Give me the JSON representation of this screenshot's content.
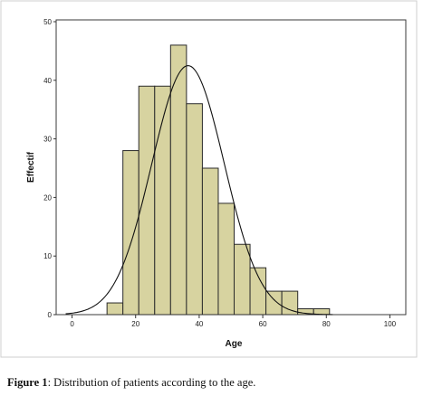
{
  "caption": {
    "label": "Figure 1",
    "text": ": Distribution of patients according to the age."
  },
  "chart_data": {
    "type": "bar",
    "subtype": "histogram",
    "xlabel": "Age",
    "ylabel": "Effectif",
    "xlim": [
      -5,
      105
    ],
    "ylim": [
      0,
      50
    ],
    "x_ticks": [
      0,
      20,
      40,
      60,
      80,
      100
    ],
    "y_ticks": [
      0,
      10,
      20,
      30,
      40,
      50
    ],
    "bin_width": 5,
    "bins": [
      {
        "start": 11,
        "count": 2
      },
      {
        "start": 16,
        "count": 28
      },
      {
        "start": 21,
        "count": 39
      },
      {
        "start": 26,
        "count": 39
      },
      {
        "start": 31,
        "count": 46
      },
      {
        "start": 36,
        "count": 36
      },
      {
        "start": 41,
        "count": 25
      },
      {
        "start": 46,
        "count": 19
      },
      {
        "start": 51,
        "count": 12
      },
      {
        "start": 56,
        "count": 8
      },
      {
        "start": 61,
        "count": 4
      },
      {
        "start": 66,
        "count": 4
      },
      {
        "start": 71,
        "count": 1
      },
      {
        "start": 76,
        "count": 1
      }
    ],
    "normal_curve": {
      "mean": 36.5,
      "sd": 11.4,
      "peak": 42.5
    },
    "grid": false,
    "colors": {
      "bar_fill": "#d7d3a0",
      "bar_stroke": "#2b2b2b",
      "curve": "#111111",
      "axis": "#333333"
    }
  }
}
